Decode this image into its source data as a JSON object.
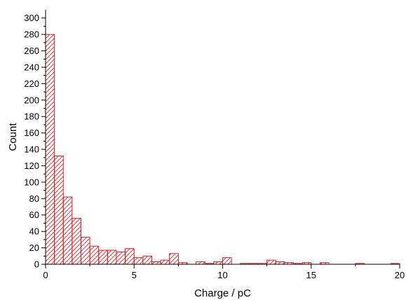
{
  "chart_data": {
    "type": "bar",
    "title": "",
    "xlabel": "Charge / pC",
    "ylabel": "Count",
    "xlim": [
      0,
      20
    ],
    "ylim": [
      0,
      310
    ],
    "x_ticks": [
      0,
      5,
      10,
      15,
      20
    ],
    "y_ticks": [
      0,
      20,
      40,
      60,
      80,
      100,
      120,
      140,
      160,
      180,
      200,
      220,
      240,
      260,
      280,
      300
    ],
    "bin_width": 0.5,
    "bin_starts": [
      0,
      0.5,
      1,
      1.5,
      2,
      2.5,
      3,
      3.5,
      4,
      4.5,
      5,
      5.5,
      6,
      6.5,
      7,
      7.5,
      8,
      8.5,
      9,
      9.5,
      10,
      10.5,
      11,
      11.5,
      12,
      12.5,
      13,
      13.5,
      14,
      14.5,
      15,
      15.5,
      16,
      16.5,
      17,
      17.5,
      18,
      18.5,
      19,
      19.5
    ],
    "values": [
      280,
      132,
      82,
      56,
      33,
      22,
      17,
      17,
      15,
      19,
      8,
      10,
      3,
      5,
      13,
      2,
      0,
      3,
      1,
      3,
      8,
      0,
      1,
      1,
      1,
      5,
      3,
      2,
      1,
      2,
      0,
      2,
      0,
      0,
      0,
      1,
      0,
      0,
      0,
      1
    ],
    "grid": false,
    "bar_color": "#e31a1c",
    "bar_pattern": "diagonal-hatch"
  }
}
